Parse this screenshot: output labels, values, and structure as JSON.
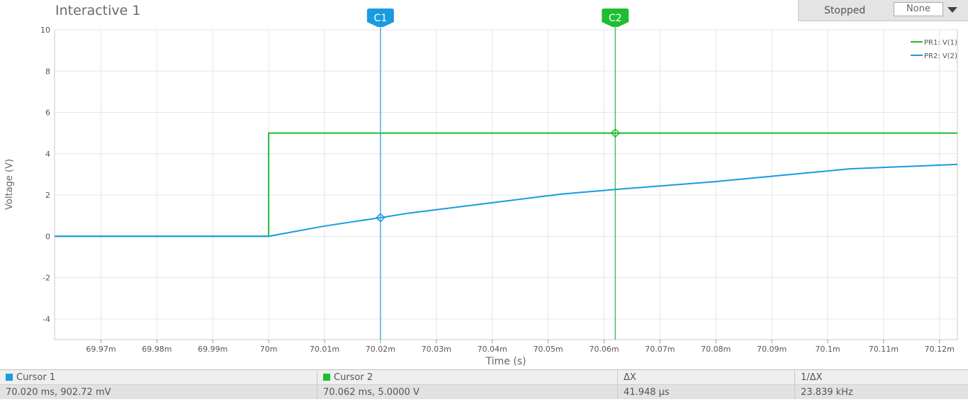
{
  "window": {
    "title": "Interactive 1"
  },
  "status": {
    "text": "Stopped",
    "mode_value": "None"
  },
  "colors": {
    "pr1": "#1fbd32",
    "pr2": "#1a9be0",
    "c1": "#1a9be0",
    "c2": "#1fbd32"
  },
  "chart_data": {
    "type": "line",
    "xlabel": "Time (s)",
    "ylabel": "Voltage (V)",
    "xlim": [
      69.9617,
      70.1232
    ],
    "ylim": [
      -5,
      10
    ],
    "grid": true,
    "legend_placement": "top-right",
    "x_ticks": [
      {
        "v": 69.97,
        "label": "69.97m"
      },
      {
        "v": 69.98,
        "label": "69.98m"
      },
      {
        "v": 69.99,
        "label": "69.99m"
      },
      {
        "v": 70.0,
        "label": "70m"
      },
      {
        "v": 70.01,
        "label": "70.01m"
      },
      {
        "v": 70.02,
        "label": "70.02m"
      },
      {
        "v": 70.03,
        "label": "70.03m"
      },
      {
        "v": 70.04,
        "label": "70.04m"
      },
      {
        "v": 70.05,
        "label": "70.05m"
      },
      {
        "v": 70.06,
        "label": "70.06m"
      },
      {
        "v": 70.07,
        "label": "70.07m"
      },
      {
        "v": 70.08,
        "label": "70.08m"
      },
      {
        "v": 70.09,
        "label": "70.09m"
      },
      {
        "v": 70.1,
        "label": "70.1m"
      },
      {
        "v": 70.11,
        "label": "70.11m"
      },
      {
        "v": 70.12,
        "label": "70.12m"
      }
    ],
    "y_ticks": [
      {
        "v": 10,
        "label": "10"
      },
      {
        "v": 8,
        "label": "8"
      },
      {
        "v": 6,
        "label": "6"
      },
      {
        "v": 4,
        "label": "4"
      },
      {
        "v": 2,
        "label": "2"
      },
      {
        "v": 0,
        "label": "0"
      },
      {
        "v": -2,
        "label": "-2"
      },
      {
        "v": -4,
        "label": "-4"
      }
    ],
    "series": [
      {
        "name": "PR1: V(1)",
        "color": "#1fbd32",
        "points": [
          [
            69.9617,
            0
          ],
          [
            70.0,
            0
          ],
          [
            70.0,
            5
          ],
          [
            70.1232,
            5
          ]
        ]
      },
      {
        "name": "PR2: V(2)",
        "color": "#1a9be0",
        "points": [
          [
            69.9617,
            0
          ],
          [
            70.0,
            0
          ],
          [
            70.01,
            0.5
          ],
          [
            70.02,
            0.9027
          ],
          [
            70.025,
            1.12
          ],
          [
            70.0525,
            2.05
          ],
          [
            70.062,
            2.27
          ],
          [
            70.08,
            2.65
          ],
          [
            70.104,
            3.27
          ],
          [
            70.1232,
            3.48
          ]
        ]
      }
    ],
    "cursors": [
      {
        "label": "C1",
        "x": 70.02,
        "y": 0.90272,
        "color": "#1a9be0"
      },
      {
        "label": "C2",
        "x": 70.062,
        "y": 5.0,
        "color": "#1fbd32"
      }
    ]
  },
  "cursor_table": {
    "headers": [
      "Cursor 1",
      "Cursor 2",
      "ΔX",
      "1/ΔX"
    ],
    "values": [
      "70.020 ms, 902.72 mV",
      "70.062 ms, 5.0000 V",
      "41.948 µs",
      "23.839 kHz"
    ]
  }
}
